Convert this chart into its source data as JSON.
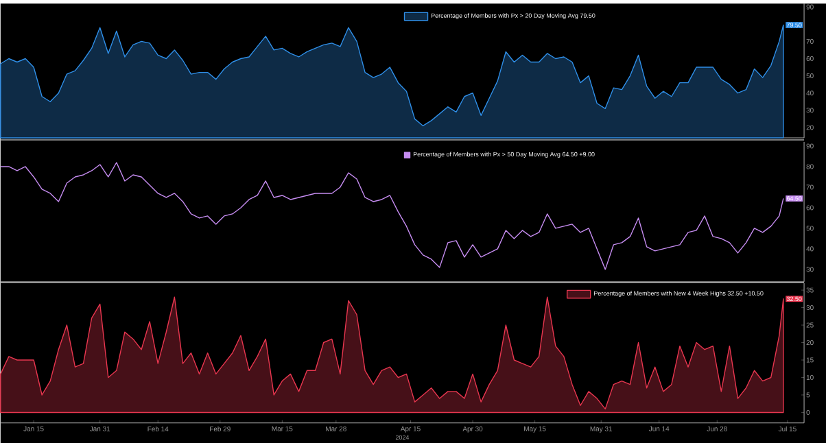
{
  "chart_data": [
    {
      "type": "area",
      "legend": "top",
      "tick_labels": "y",
      "x": [
        "2024-01-07",
        "2024-01-09",
        "2024-01-11",
        "2024-01-13",
        "2024-01-15",
        "2024-01-17",
        "2024-01-19",
        "2024-01-21",
        "2024-01-23",
        "2024-01-25",
        "2024-01-27",
        "2024-01-29",
        "2024-01-31",
        "2024-02-02",
        "2024-02-04",
        "2024-02-06",
        "2024-02-08",
        "2024-02-10",
        "2024-02-12",
        "2024-02-14",
        "2024-02-16",
        "2024-02-18",
        "2024-02-20",
        "2024-02-22",
        "2024-02-24",
        "2024-02-26",
        "2024-02-28",
        "2024-03-01",
        "2024-03-03",
        "2024-03-05",
        "2024-03-07",
        "2024-03-09",
        "2024-03-11",
        "2024-03-13",
        "2024-03-15",
        "2024-03-17",
        "2024-03-19",
        "2024-03-21",
        "2024-03-23",
        "2024-03-25",
        "2024-03-27",
        "2024-03-29",
        "2024-03-31",
        "2024-04-02",
        "2024-04-04",
        "2024-04-06",
        "2024-04-08",
        "2024-04-10",
        "2024-04-12",
        "2024-04-14",
        "2024-04-16",
        "2024-04-18",
        "2024-04-20",
        "2024-04-22",
        "2024-04-24",
        "2024-04-26",
        "2024-04-28",
        "2024-04-30",
        "2024-05-02",
        "2024-05-04",
        "2024-05-06",
        "2024-05-08",
        "2024-05-10",
        "2024-05-12",
        "2024-05-14",
        "2024-05-16",
        "2024-05-18",
        "2024-05-20",
        "2024-05-22",
        "2024-05-24",
        "2024-05-26",
        "2024-05-28",
        "2024-05-30",
        "2024-06-01",
        "2024-06-03",
        "2024-06-05",
        "2024-06-07",
        "2024-06-09",
        "2024-06-11",
        "2024-06-13",
        "2024-06-15",
        "2024-06-17",
        "2024-06-19",
        "2024-06-21",
        "2024-06-23",
        "2024-06-25",
        "2024-06-27",
        "2024-06-29",
        "2024-07-01",
        "2024-07-03",
        "2024-07-05",
        "2024-07-07",
        "2024-07-09",
        "2024-07-11",
        "2024-07-13",
        "2024-07-14"
      ],
      "series": [
        {
          "name": "Percentage of Members with Px > 20 Day Moving Avg 79.50",
          "color": "#2f8fe8",
          "values": [
            57,
            60,
            58,
            60,
            55,
            38,
            35,
            40,
            51,
            53,
            59,
            66,
            78,
            63,
            76,
            61,
            68,
            70,
            69,
            62,
            60,
            65,
            59,
            51,
            52,
            52,
            48,
            54,
            58,
            60,
            61,
            67,
            73,
            65,
            66,
            63,
            61,
            64,
            66,
            68,
            69,
            67,
            78,
            70,
            52,
            49,
            51,
            55,
            46,
            41,
            25,
            21,
            24,
            28,
            32,
            29,
            38,
            40,
            27,
            37,
            47,
            64,
            58,
            62,
            58,
            58,
            63,
            60,
            61,
            58,
            46,
            50,
            34,
            31,
            43,
            42,
            50,
            62,
            44,
            37,
            41,
            38,
            46,
            46,
            55,
            55,
            55,
            48,
            45,
            40,
            42,
            54,
            49,
            56,
            70,
            79.5
          ],
          "value_labels": [
            null,
            null,
            null,
            null,
            null,
            null,
            null,
            null,
            null,
            null,
            null,
            null,
            null,
            null,
            null,
            null,
            null,
            null,
            null,
            null,
            null,
            null,
            null,
            null,
            null,
            null,
            null,
            null,
            null,
            null,
            null,
            null,
            null,
            null,
            null,
            null,
            null,
            null,
            null,
            null,
            null,
            null,
            null,
            null,
            null,
            null,
            null,
            null,
            null,
            null,
            null,
            null,
            null,
            null,
            null,
            null,
            null,
            null,
            null,
            null,
            null,
            null,
            null,
            null,
            null,
            null,
            null,
            null,
            null,
            null,
            null,
            null,
            null,
            null,
            null,
            null,
            null,
            null,
            null,
            null,
            null,
            null,
            null,
            null,
            null,
            null,
            null,
            null,
            null,
            null,
            null,
            null,
            null,
            null,
            null,
            "79.50"
          ]
        }
      ],
      "xlim": [
        "2024-01-07",
        "2024-07-19"
      ],
      "ylim": [
        14,
        92
      ],
      "yticks": [
        20,
        30,
        40,
        50,
        60,
        70,
        90
      ]
    },
    {
      "type": "line",
      "legend": "top",
      "tick_labels": "y",
      "x": [
        "2024-01-07",
        "2024-01-09",
        "2024-01-11",
        "2024-01-13",
        "2024-01-15",
        "2024-01-17",
        "2024-01-19",
        "2024-01-21",
        "2024-01-23",
        "2024-01-25",
        "2024-01-27",
        "2024-01-29",
        "2024-01-31",
        "2024-02-02",
        "2024-02-04",
        "2024-02-06",
        "2024-02-08",
        "2024-02-10",
        "2024-02-12",
        "2024-02-14",
        "2024-02-16",
        "2024-02-18",
        "2024-02-20",
        "2024-02-22",
        "2024-02-24",
        "2024-02-26",
        "2024-02-28",
        "2024-03-01",
        "2024-03-03",
        "2024-03-05",
        "2024-03-07",
        "2024-03-09",
        "2024-03-11",
        "2024-03-13",
        "2024-03-15",
        "2024-03-17",
        "2024-03-19",
        "2024-03-21",
        "2024-03-23",
        "2024-03-25",
        "2024-03-27",
        "2024-03-29",
        "2024-03-31",
        "2024-04-02",
        "2024-04-04",
        "2024-04-06",
        "2024-04-08",
        "2024-04-10",
        "2024-04-12",
        "2024-04-14",
        "2024-04-16",
        "2024-04-18",
        "2024-04-20",
        "2024-04-22",
        "2024-04-24",
        "2024-04-26",
        "2024-04-28",
        "2024-04-30",
        "2024-05-02",
        "2024-05-04",
        "2024-05-06",
        "2024-05-08",
        "2024-05-10",
        "2024-05-12",
        "2024-05-14",
        "2024-05-16",
        "2024-05-18",
        "2024-05-20",
        "2024-05-22",
        "2024-05-24",
        "2024-05-26",
        "2024-05-28",
        "2024-05-30",
        "2024-06-01",
        "2024-06-03",
        "2024-06-05",
        "2024-06-07",
        "2024-06-09",
        "2024-06-11",
        "2024-06-13",
        "2024-06-15",
        "2024-06-17",
        "2024-06-19",
        "2024-06-21",
        "2024-06-23",
        "2024-06-25",
        "2024-06-27",
        "2024-06-29",
        "2024-07-01",
        "2024-07-03",
        "2024-07-05",
        "2024-07-07",
        "2024-07-09",
        "2024-07-11",
        "2024-07-13",
        "2024-07-14"
      ],
      "series": [
        {
          "name": "Percentage of Members with Px > 50 Day Moving Avg 64.50  +9.00",
          "color": "#c58cf0",
          "values": [
            80,
            80,
            78,
            80,
            75,
            69,
            67,
            63,
            72,
            75,
            76,
            78,
            81,
            75,
            82,
            73,
            76,
            75,
            71,
            67,
            65,
            67,
            63,
            57,
            55,
            56,
            52,
            56,
            57,
            60,
            64,
            66,
            73,
            65,
            66,
            64,
            65,
            66,
            67,
            67,
            67,
            70,
            77,
            74,
            65,
            63,
            64,
            66,
            58,
            51,
            42,
            37,
            35,
            31,
            43,
            44,
            36,
            42,
            36,
            38,
            40,
            49,
            45,
            49,
            46,
            48,
            57,
            50,
            51,
            52,
            48,
            50,
            40,
            30,
            42,
            43,
            46,
            55,
            41,
            39,
            40,
            41,
            42,
            48,
            49,
            56,
            46,
            45,
            43,
            38,
            43,
            50,
            48,
            51,
            56,
            64.5
          ],
          "value_labels": [
            null,
            null,
            null,
            null,
            null,
            null,
            null,
            null,
            null,
            null,
            null,
            null,
            null,
            null,
            null,
            null,
            null,
            null,
            null,
            null,
            null,
            null,
            null,
            null,
            null,
            null,
            null,
            null,
            null,
            null,
            null,
            null,
            null,
            null,
            null,
            null,
            null,
            null,
            null,
            null,
            null,
            null,
            null,
            null,
            null,
            null,
            null,
            null,
            null,
            null,
            null,
            null,
            null,
            null,
            null,
            null,
            null,
            null,
            null,
            null,
            null,
            null,
            null,
            null,
            null,
            null,
            null,
            null,
            null,
            null,
            null,
            null,
            null,
            null,
            null,
            null,
            null,
            null,
            null,
            null,
            null,
            null,
            null,
            null,
            null,
            null,
            null,
            null,
            null,
            null,
            null,
            null,
            null,
            null,
            null,
            "64.50"
          ]
        }
      ],
      "xlim": [
        "2024-01-07",
        "2024-07-19"
      ],
      "ylim": [
        24,
        92
      ],
      "yticks": [
        30,
        40,
        50,
        60,
        70,
        80,
        90
      ]
    },
    {
      "type": "area",
      "legend": "top right",
      "xlabel": "2024",
      "x": [
        "2024-01-07",
        "2024-01-09",
        "2024-01-11",
        "2024-01-13",
        "2024-01-15",
        "2024-01-17",
        "2024-01-19",
        "2024-01-21",
        "2024-01-23",
        "2024-01-25",
        "2024-01-27",
        "2024-01-29",
        "2024-01-31",
        "2024-02-02",
        "2024-02-04",
        "2024-02-06",
        "2024-02-08",
        "2024-02-10",
        "2024-02-12",
        "2024-02-14",
        "2024-02-16",
        "2024-02-18",
        "2024-02-20",
        "2024-02-22",
        "2024-02-24",
        "2024-02-26",
        "2024-02-28",
        "2024-03-01",
        "2024-03-03",
        "2024-03-05",
        "2024-03-07",
        "2024-03-09",
        "2024-03-11",
        "2024-03-13",
        "2024-03-15",
        "2024-03-17",
        "2024-03-19",
        "2024-03-21",
        "2024-03-23",
        "2024-03-25",
        "2024-03-27",
        "2024-03-29",
        "2024-03-31",
        "2024-04-02",
        "2024-04-04",
        "2024-04-06",
        "2024-04-08",
        "2024-04-10",
        "2024-04-12",
        "2024-04-14",
        "2024-04-16",
        "2024-04-18",
        "2024-04-20",
        "2024-04-22",
        "2024-04-24",
        "2024-04-26",
        "2024-04-28",
        "2024-04-30",
        "2024-05-02",
        "2024-05-04",
        "2024-05-06",
        "2024-05-08",
        "2024-05-10",
        "2024-05-12",
        "2024-05-14",
        "2024-05-16",
        "2024-05-18",
        "2024-05-20",
        "2024-05-22",
        "2024-05-24",
        "2024-05-26",
        "2024-05-28",
        "2024-05-30",
        "2024-06-01",
        "2024-06-03",
        "2024-06-05",
        "2024-06-07",
        "2024-06-09",
        "2024-06-11",
        "2024-06-13",
        "2024-06-15",
        "2024-06-17",
        "2024-06-19",
        "2024-06-21",
        "2024-06-23",
        "2024-06-25",
        "2024-06-27",
        "2024-06-29",
        "2024-07-01",
        "2024-07-03",
        "2024-07-05",
        "2024-07-07",
        "2024-07-09",
        "2024-07-11",
        "2024-07-13",
        "2024-07-14"
      ],
      "series": [
        {
          "name": "Percentage of Members with New 4 Week Highs 32.50  +10.50",
          "color": "#e8364f",
          "values": [
            11,
            16,
            15,
            15,
            15,
            5,
            9,
            18,
            25,
            13,
            14,
            27,
            31,
            10,
            12,
            23,
            21,
            18,
            26,
            14,
            23,
            33,
            14,
            17,
            11,
            17,
            11,
            14,
            17,
            22,
            12,
            16,
            21,
            5,
            9,
            11,
            6,
            12,
            12,
            20,
            21,
            11,
            32,
            28,
            12,
            8,
            12,
            13,
            10,
            11,
            3,
            5,
            7,
            4,
            6,
            6,
            4,
            11,
            3,
            8,
            12,
            25,
            15,
            14,
            13,
            16,
            33,
            19,
            16,
            8,
            2,
            6,
            4,
            1,
            8,
            9,
            8,
            20,
            7,
            13,
            6,
            8,
            19,
            13,
            20,
            18,
            19,
            6,
            19,
            4,
            7,
            12,
            9,
            10,
            22,
            32.5
          ],
          "value_labels": [
            null,
            null,
            null,
            null,
            null,
            null,
            null,
            null,
            null,
            null,
            null,
            null,
            null,
            null,
            null,
            null,
            null,
            null,
            null,
            null,
            null,
            null,
            null,
            null,
            null,
            null,
            null,
            null,
            null,
            null,
            null,
            null,
            null,
            null,
            null,
            null,
            null,
            null,
            null,
            null,
            null,
            null,
            null,
            null,
            null,
            null,
            null,
            null,
            null,
            null,
            null,
            null,
            null,
            null,
            null,
            null,
            null,
            null,
            null,
            null,
            null,
            null,
            null,
            null,
            null,
            null,
            null,
            null,
            null,
            null,
            null,
            null,
            null,
            null,
            null,
            null,
            null,
            null,
            null,
            null,
            null,
            null,
            null,
            null,
            null,
            null,
            null,
            null,
            null,
            null,
            null,
            null,
            null,
            null,
            null,
            "32.50"
          ]
        }
      ],
      "xlim": [
        "2024-01-07",
        "2024-07-19"
      ],
      "ylim": [
        -3,
        37
      ],
      "yticks": [
        0,
        5,
        10,
        15,
        20,
        25,
        30,
        35
      ],
      "xticks": [
        {
          "value": "2024-01-15",
          "label": "Jan 15"
        },
        {
          "value": "2024-01-31",
          "label": "Jan 31"
        },
        {
          "value": "2024-02-14",
          "label": "Feb 14"
        },
        {
          "value": "2024-02-29",
          "label": "Feb 29"
        },
        {
          "value": "2024-03-15",
          "label": "Mar 15"
        },
        {
          "value": "2024-03-28",
          "label": "Mar 28"
        },
        {
          "value": "2024-04-15",
          "label": "Apr 15"
        },
        {
          "value": "2024-04-30",
          "label": "Apr 30"
        },
        {
          "value": "2024-05-15",
          "label": "May 15"
        },
        {
          "value": "2024-05-31",
          "label": "May 31"
        },
        {
          "value": "2024-06-14",
          "label": "Jun 14"
        },
        {
          "value": "2024-06-28",
          "label": "Jun 28"
        },
        {
          "value": "2024-07-15",
          "label": "Jul 15"
        }
      ]
    }
  ]
}
